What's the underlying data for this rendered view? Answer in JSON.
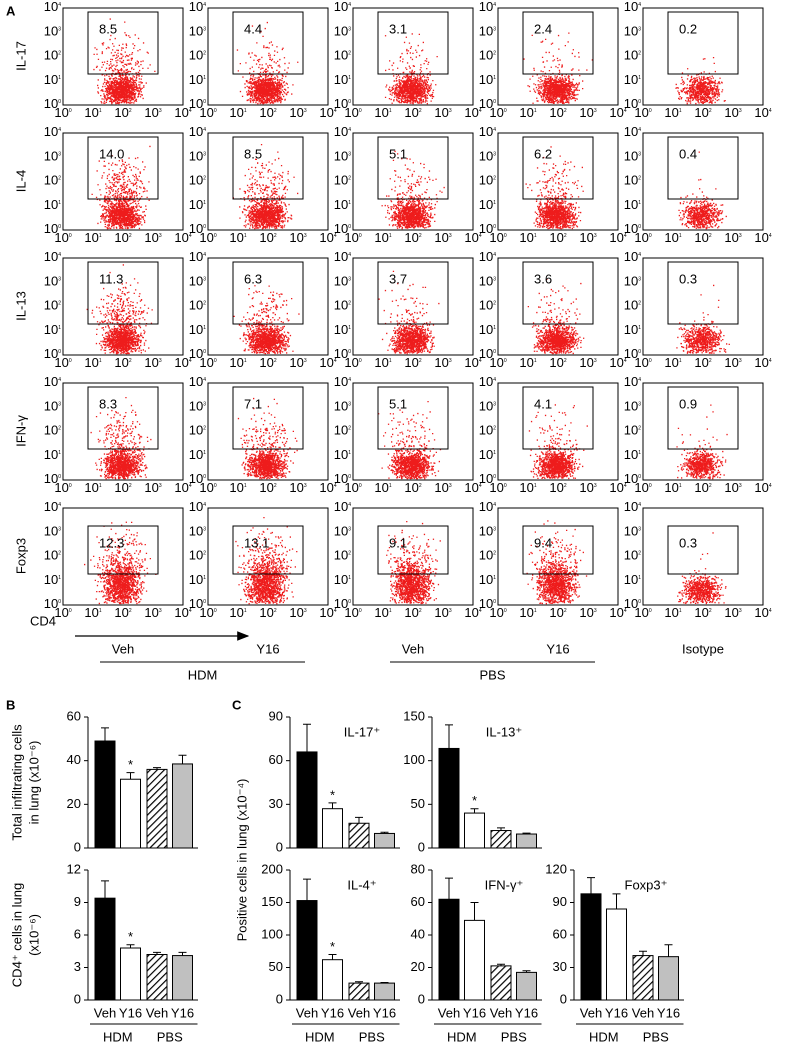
{
  "panel_a": {
    "letter": "A",
    "rows": [
      {
        "label": "IL-17",
        "gates": [
          "8.5",
          "4.4",
          "3.1",
          "2.4",
          "0.2"
        ]
      },
      {
        "label": "IL-4",
        "gates": [
          "14.0",
          "8.5",
          "5.1",
          "6.2",
          "0.4"
        ]
      },
      {
        "label": "IL-13",
        "gates": [
          "11.3",
          "6.3",
          "3.7",
          "3.6",
          "0.3"
        ]
      },
      {
        "label": "IFN-γ",
        "gates": [
          "8.3",
          "7.1",
          "5.1",
          "4.1",
          "0.9"
        ]
      },
      {
        "label": "Foxp3",
        "gates": [
          "12.3",
          "13.1",
          "9.1",
          "9.4",
          "0.3"
        ]
      }
    ],
    "tick_base": "10",
    "tick_exponents": [
      "0",
      "1",
      "2",
      "3",
      "4"
    ],
    "x_label": "CD4",
    "groups": [
      {
        "categories": [
          "Veh",
          "Y16"
        ],
        "label": "HDM"
      },
      {
        "categories": [
          "Veh",
          "Y16"
        ],
        "label": "PBS"
      }
    ],
    "control": "Isotype"
  },
  "panel_b": "B",
  "panel_c": {
    "letter": "C",
    "ylabel": "Positive cells in lung (x10⁻⁴)"
  },
  "chart_data": [
    {
      "type": "bar",
      "ylabel": [
        "Total infiltrating cells",
        "in lung (x10⁻⁶)"
      ],
      "values": [
        49,
        31.5,
        36,
        38.5
      ],
      "errors": [
        6,
        3,
        0.8,
        4
      ],
      "fills": [
        "#000000",
        "#ffffff",
        "hatch",
        "#c0c0c0"
      ],
      "ylim": [
        0,
        60
      ],
      "yticks": [
        0,
        20,
        40,
        60
      ],
      "significance": [
        {
          "index": 1,
          "label": "*"
        }
      ]
    },
    {
      "type": "bar",
      "ylabel": [
        "CD4⁺ cells in lung",
        "(x10⁻⁶)"
      ],
      "values": [
        9.4,
        4.8,
        4.2,
        4.1
      ],
      "errors": [
        1.6,
        0.3,
        0.2,
        0.3
      ],
      "fills": [
        "#000000",
        "#ffffff",
        "hatch",
        "#c0c0c0"
      ],
      "ylim": [
        0,
        12
      ],
      "yticks": [
        0,
        3,
        6,
        9,
        12
      ],
      "significance": [
        {
          "index": 1,
          "label": "*"
        }
      ],
      "categories": [
        "Veh",
        "Y16",
        "Veh",
        "Y16"
      ],
      "groups": [
        {
          "label": "HDM"
        },
        {
          "label": "PBS"
        }
      ]
    },
    {
      "type": "bar",
      "title": "IL-17⁺",
      "values": [
        66,
        27,
        17,
        10
      ],
      "errors": [
        19,
        4,
        4,
        0.8
      ],
      "fills": [
        "#000000",
        "#ffffff",
        "hatch",
        "#c0c0c0"
      ],
      "ylim": [
        0,
        90
      ],
      "yticks": [
        0,
        30,
        60,
        90
      ],
      "significance": [
        {
          "index": 1,
          "label": "*"
        }
      ]
    },
    {
      "type": "bar",
      "title": "IL-13⁺",
      "values": [
        114,
        40,
        20,
        16
      ],
      "errors": [
        27,
        5,
        3,
        1
      ],
      "fills": [
        "#000000",
        "#ffffff",
        "hatch",
        "#c0c0c0"
      ],
      "ylim": [
        0,
        150
      ],
      "yticks": [
        0,
        50,
        100,
        150
      ],
      "significance": [
        {
          "index": 1,
          "label": "*"
        }
      ]
    },
    {
      "type": "bar",
      "title": "IL-4⁺",
      "values": [
        153,
        62,
        26,
        26
      ],
      "errors": [
        33,
        8,
        2,
        1
      ],
      "fills": [
        "#000000",
        "#ffffff",
        "hatch",
        "#c0c0c0"
      ],
      "ylim": [
        0,
        200
      ],
      "yticks": [
        0,
        50,
        100,
        150,
        200
      ],
      "significance": [
        {
          "index": 1,
          "label": "*"
        }
      ],
      "categories": [
        "Veh",
        "Y16",
        "Veh",
        "Y16"
      ],
      "groups": [
        {
          "label": "HDM"
        },
        {
          "label": "PBS"
        }
      ]
    },
    {
      "type": "bar",
      "title": "IFN-γ⁺",
      "values": [
        62,
        49,
        21,
        17
      ],
      "errors": [
        13,
        11,
        1,
        1
      ],
      "fills": [
        "#000000",
        "#ffffff",
        "hatch",
        "#c0c0c0"
      ],
      "ylim": [
        0,
        80
      ],
      "yticks": [
        0,
        20,
        40,
        60,
        80
      ],
      "categories": [
        "Veh",
        "Y16",
        "Veh",
        "Y16"
      ],
      "groups": [
        {
          "label": "HDM"
        },
        {
          "label": "PBS"
        }
      ]
    },
    {
      "type": "bar",
      "title": "Foxp3⁺",
      "values": [
        98,
        84,
        41,
        40
      ],
      "errors": [
        15,
        14,
        4,
        11
      ],
      "fills": [
        "#000000",
        "#ffffff",
        "hatch",
        "#c0c0c0"
      ],
      "ylim": [
        0,
        120
      ],
      "yticks": [
        0,
        30,
        60,
        90,
        120
      ],
      "categories": [
        "Veh",
        "Y16",
        "Veh",
        "Y16"
      ],
      "groups": [
        {
          "label": "HDM"
        },
        {
          "label": "PBS"
        }
      ]
    }
  ]
}
